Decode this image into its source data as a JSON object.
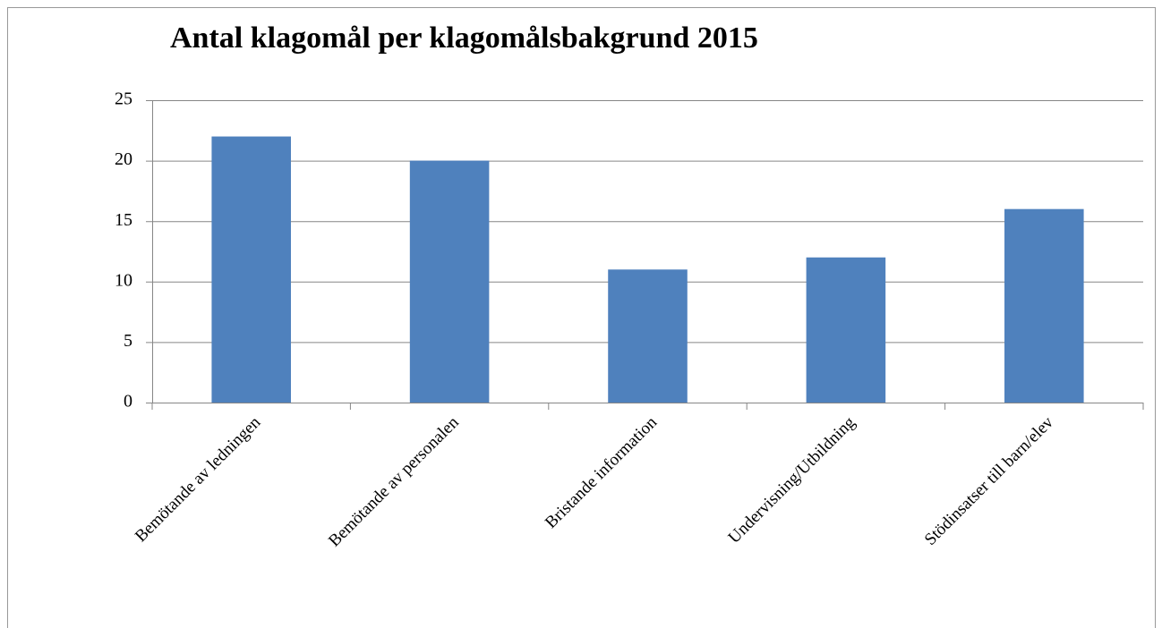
{
  "chart_data": {
    "type": "bar",
    "title": "Antal klagomål per klagomålsbakgrund 2015",
    "categories": [
      "Bemötande av ledningen",
      "Bemötande av personalen",
      "Bristande information",
      "Undervisning/Utbildning",
      "Stödinsatser till barn/elev"
    ],
    "values": [
      22,
      20,
      11,
      12,
      16
    ],
    "color": "#4f81bd",
    "ylim": [
      0,
      25
    ],
    "yticks": [
      0,
      5,
      10,
      15,
      20,
      25
    ],
    "grid": true
  }
}
